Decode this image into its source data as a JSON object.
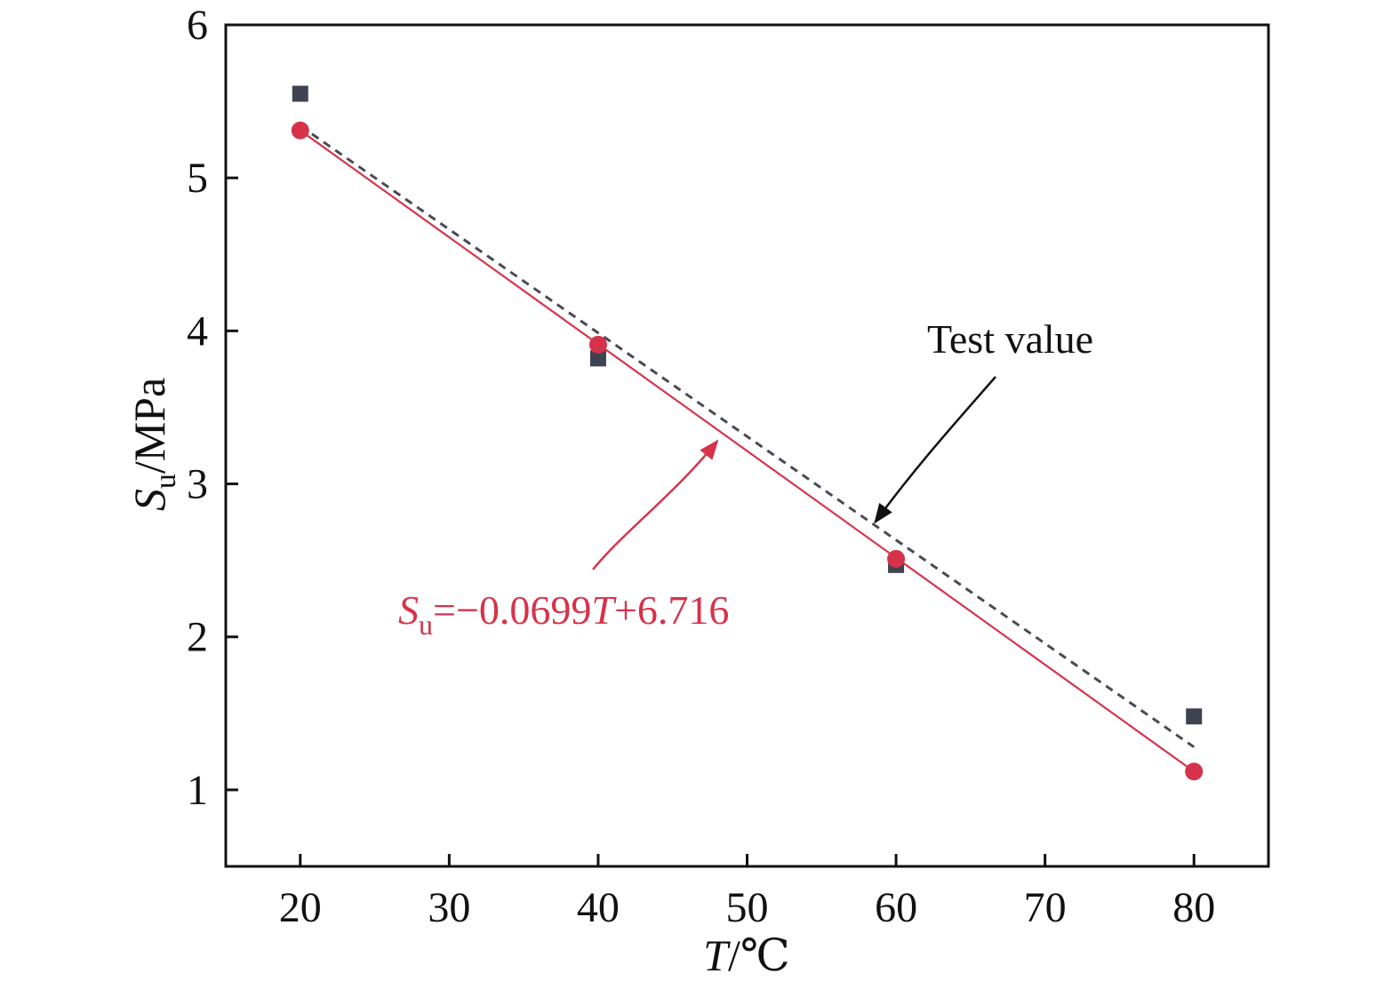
{
  "chart_data": {
    "type": "scatter",
    "xlabel": {
      "symbol": "T",
      "unit": "/℃"
    },
    "ylabel": {
      "symbol": "S",
      "subscript": "u",
      "unit": "/MPa"
    },
    "xlim": [
      15,
      85
    ],
    "ylim": [
      0.5,
      6
    ],
    "x_ticks": [
      20,
      30,
      40,
      50,
      60,
      70,
      80
    ],
    "y_ticks": [
      1,
      2,
      3,
      4,
      5,
      6
    ],
    "grid": false,
    "series": [
      {
        "marker": "square",
        "color": "#3f4250",
        "x": [
          20,
          40,
          60,
          80
        ],
        "y": [
          5.55,
          3.82,
          2.47,
          1.48
        ]
      },
      {
        "marker": "circle",
        "color": "#d6334a",
        "x": [
          20,
          40,
          60,
          80
        ],
        "y": [
          5.31,
          3.91,
          2.51,
          1.12
        ]
      }
    ],
    "lines": [
      {
        "style": "dashed",
        "color": "#4a4a55",
        "x": [
          20,
          80
        ],
        "y": [
          5.34,
          1.28
        ]
      },
      {
        "style": "solid",
        "color": "#d6334a",
        "x": [
          20,
          80
        ],
        "y": [
          5.31,
          1.12
        ]
      }
    ],
    "annotations": [
      {
        "text": "Test value",
        "color": "#111111",
        "arrow_to": [
          58.6,
          2.75
        ]
      },
      {
        "text_parts": [
          "S",
          "u",
          "=−0.0699",
          "T",
          "+6.716"
        ],
        "color": "#d6334a",
        "arrow_to": [
          48,
          3.28
        ]
      }
    ]
  }
}
